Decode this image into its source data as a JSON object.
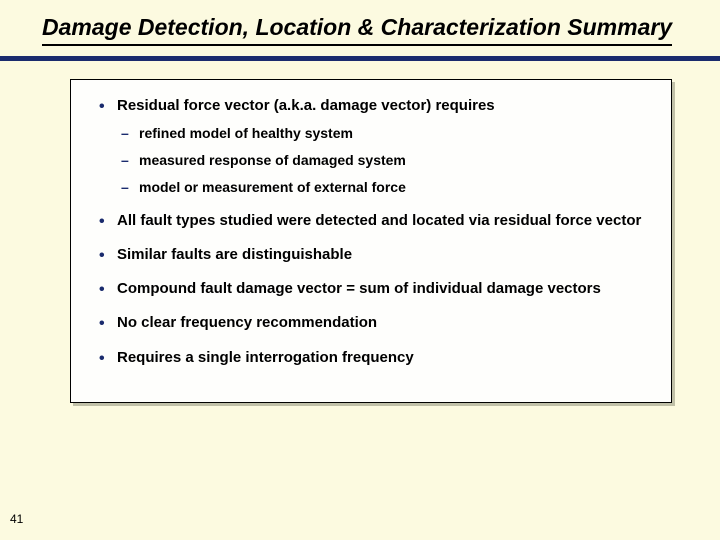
{
  "colors": {
    "background": "#fcfae0",
    "box_background": "#fefefc",
    "divider": "#1a2b6d",
    "bullet": "#1a2b6d",
    "text": "#000000",
    "box_shadow": "#c0c0a8"
  },
  "typography": {
    "title_fontsize": 23,
    "title_style": "bold italic",
    "bullet_fontsize": 15,
    "subbullet_fontsize": 14,
    "font_family": "Arial"
  },
  "title": "Damage Detection, Location & Characterization Summary",
  "bullets": [
    {
      "text": "Residual force vector (a.k.a. damage vector) requires",
      "sub": [
        "refined model of healthy system",
        "measured response of damaged system",
        "model or measurement of external force"
      ]
    },
    {
      "text": "All fault types studied were detected and located via residual force vector"
    },
    {
      "text": "Similar faults are distinguishable"
    },
    {
      "text": "Compound fault damage vector = sum of individual damage vectors"
    },
    {
      "text": "No clear frequency recommendation"
    },
    {
      "text": "Requires a single interrogation frequency"
    }
  ],
  "page_number": "41"
}
